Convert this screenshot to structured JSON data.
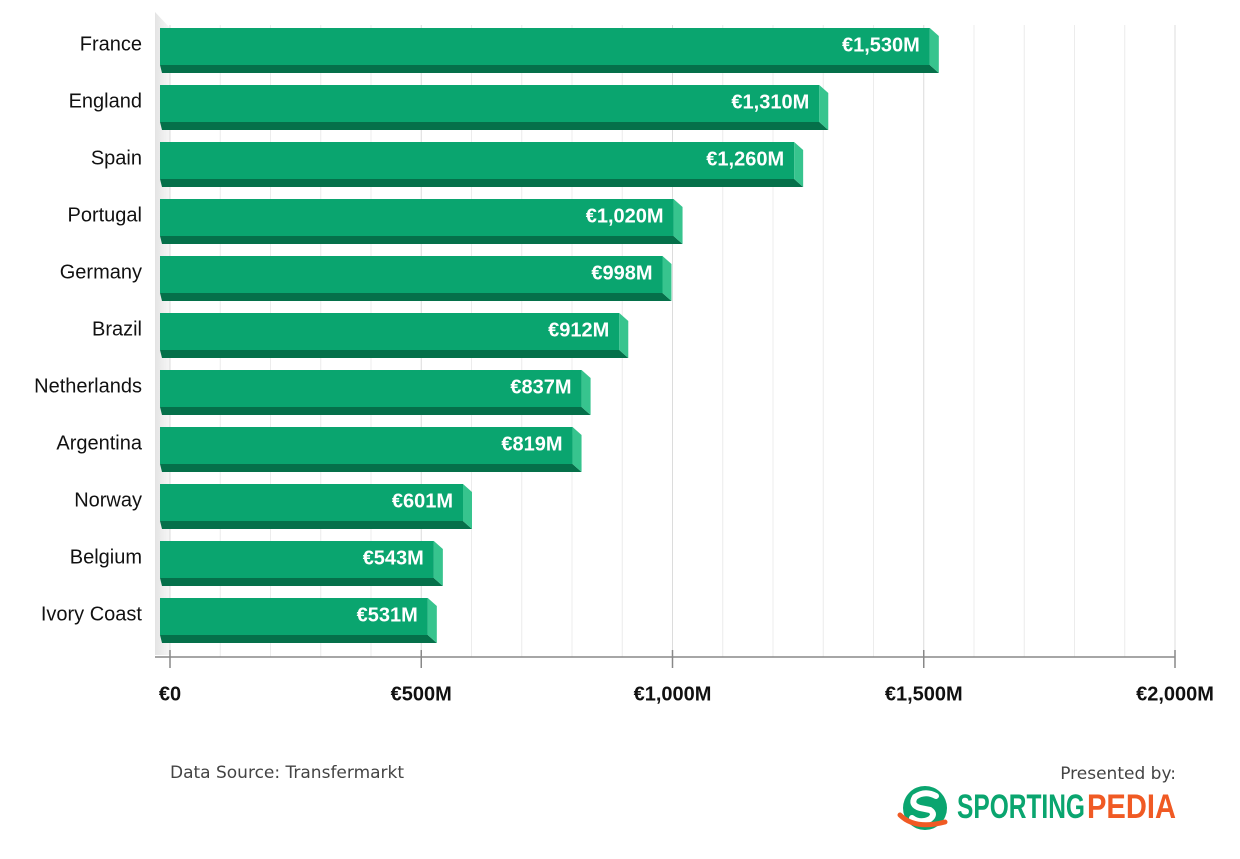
{
  "chart_data": {
    "type": "bar",
    "orientation": "horizontal",
    "categories": [
      "France",
      "England",
      "Spain",
      "Portugal",
      "Germany",
      "Brazil",
      "Netherlands",
      "Argentina",
      "Norway",
      "Belgium",
      "Ivory Coast"
    ],
    "values": [
      1530,
      1310,
      1260,
      1020,
      998,
      912,
      837,
      819,
      601,
      543,
      531
    ],
    "value_labels": [
      "€1,530M",
      "€1,310M",
      "€1,260M",
      "€1,020M",
      "€998M",
      "€912M",
      "€837M",
      "€819M",
      "€601M",
      "€543M",
      "€531M"
    ],
    "color": "#0aa56f",
    "xlim": [
      0,
      2000
    ],
    "xticks": [
      {
        "value": 0,
        "label": "€0"
      },
      {
        "value": 500,
        "label": "€500M"
      },
      {
        "value": 1000,
        "label": "€1,000M"
      },
      {
        "value": 1500,
        "label": "€1,500M"
      },
      {
        "value": 2000,
        "label": "€2,000M"
      }
    ],
    "minor_xticks": [
      100,
      200,
      300,
      400,
      600,
      700,
      800,
      900,
      1100,
      1200,
      1300,
      1400,
      1600,
      1700,
      1800,
      1900
    ],
    "grid": true,
    "source": "Data Source: Transfermarkt",
    "credit": "Presented by:",
    "logo": [
      "SPORTING",
      "PEDIA"
    ]
  }
}
